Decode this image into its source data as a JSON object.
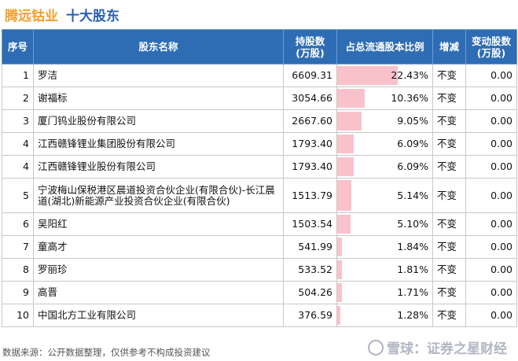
{
  "header": {
    "company": "腾远钴业",
    "subtitle": "十大股东"
  },
  "table": {
    "columns": [
      "序号",
      "股东名称",
      "持股数\n(万股)",
      "占总流通股本比例",
      "增减",
      "变动股数\n(万股)"
    ],
    "rows": [
      {
        "rank": "1",
        "name": "罗洁",
        "shares": "6609.31",
        "ratio": "22.43%",
        "ratio_value": 22.43,
        "change": "不变",
        "delta": "0.00"
      },
      {
        "rank": "2",
        "name": "谢福标",
        "shares": "3054.66",
        "ratio": "10.36%",
        "ratio_value": 10.36,
        "change": "不变",
        "delta": "0.00"
      },
      {
        "rank": "3",
        "name": "厦门钨业股份有限公司",
        "shares": "2667.60",
        "ratio": "9.05%",
        "ratio_value": 9.05,
        "change": "不变",
        "delta": "0.00"
      },
      {
        "rank": "4",
        "name": "江西赣锋锂业集团股份有限公司",
        "shares": "1793.40",
        "ratio": "6.09%",
        "ratio_value": 6.09,
        "change": "不变",
        "delta": "0.00"
      },
      {
        "rank": "4",
        "name": "江西赣锋锂业股份有限公司",
        "shares": "1793.40",
        "ratio": "6.09%",
        "ratio_value": 6.09,
        "change": "不变",
        "delta": "0.00"
      },
      {
        "rank": "5",
        "name": "宁波梅山保税港区晨道投资合伙企业(有限合伙)-长江晨道(湖北)新能源产业投资合伙企业(有限合伙)",
        "shares": "1513.79",
        "ratio": "5.14%",
        "ratio_value": 5.14,
        "change": "不变",
        "delta": "0.00"
      },
      {
        "rank": "6",
        "name": "吴阳红",
        "shares": "1503.54",
        "ratio": "5.10%",
        "ratio_value": 5.1,
        "change": "不变",
        "delta": "0.00"
      },
      {
        "rank": "7",
        "name": "童高才",
        "shares": "541.99",
        "ratio": "1.84%",
        "ratio_value": 1.84,
        "change": "不变",
        "delta": "0.00"
      },
      {
        "rank": "8",
        "name": "罗丽珍",
        "shares": "533.52",
        "ratio": "1.81%",
        "ratio_value": 1.81,
        "change": "不变",
        "delta": "0.00"
      },
      {
        "rank": "9",
        "name": "高晋",
        "shares": "504.26",
        "ratio": "1.71%",
        "ratio_value": 1.71,
        "change": "不变",
        "delta": "0.00"
      },
      {
        "rank": "10",
        "name": "中国北方工业有限公司",
        "shares": "376.59",
        "ratio": "1.28%",
        "ratio_value": 1.28,
        "change": "不变",
        "delta": "0.00"
      }
    ]
  },
  "footer": {
    "source": "数据来源：公开数据整理，仅供参考不构成投资建议"
  },
  "brand": {
    "text": "雪球：证券之星财经"
  },
  "colors": {
    "header_bg": "#2e6db4",
    "bar": "#f9c2cb",
    "company": "#f0a030",
    "subtitle": "#2a5fb0"
  }
}
